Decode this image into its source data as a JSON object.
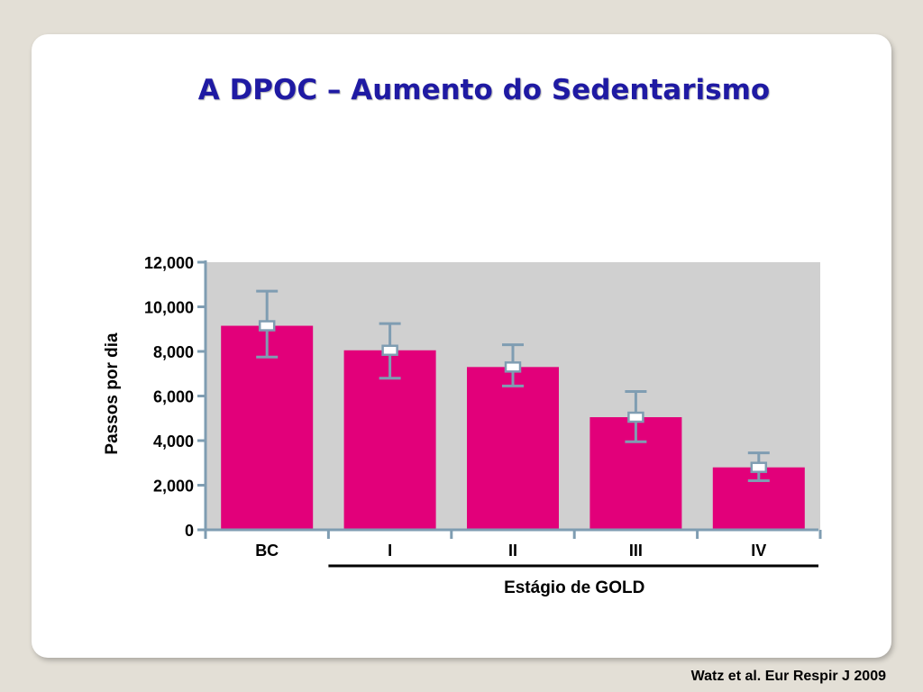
{
  "slide": {
    "title": "A DPOC – Aumento do Sedentarismo",
    "citation": "Watz et al. Eur Respir J 2009"
  },
  "colors": {
    "bar": "#e2007a",
    "plot_bg": "#d0d0d0",
    "axis": "#7f9db2",
    "title": "#1f1aa3"
  },
  "chart_data": {
    "type": "bar",
    "title": "",
    "xlabel": "Estágio de GOLD",
    "ylabel": "Passos por dia",
    "categories": [
      "BC",
      "I",
      "II",
      "III",
      "IV"
    ],
    "values": [
      9150,
      8050,
      7300,
      5050,
      2800
    ],
    "error_low": [
      7750,
      6800,
      6450,
      3950,
      2200
    ],
    "error_high": [
      10700,
      9250,
      8300,
      6200,
      3450
    ],
    "ylim": [
      0,
      12000
    ],
    "yticks": [
      0,
      2000,
      4000,
      6000,
      8000,
      10000,
      12000
    ],
    "ytick_labels": [
      "0",
      "2,000",
      "4,000",
      "6,000",
      "8,000",
      "10,000",
      "12,000"
    ],
    "grid": false
  }
}
